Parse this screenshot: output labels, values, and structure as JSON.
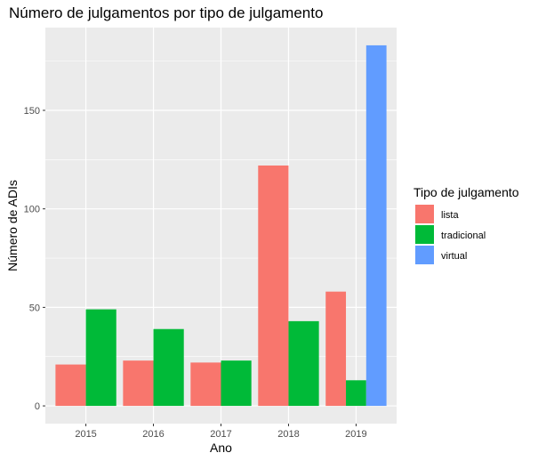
{
  "chart_data": {
    "type": "bar",
    "title": "Número de julgamentos por tipo de julgamento",
    "xlabel": "Ano",
    "ylabel": "Número de ADIs",
    "categories": [
      "2015",
      "2016",
      "2017",
      "2018",
      "2019"
    ],
    "series": [
      {
        "name": "lista",
        "color": "#F8766D",
        "values": [
          21,
          23,
          22,
          122,
          58
        ]
      },
      {
        "name": "tradicional",
        "color": "#00BA38",
        "values": [
          49,
          39,
          23,
          43,
          13
        ]
      },
      {
        "name": "virtual",
        "color": "#619CFF",
        "values": [
          null,
          null,
          null,
          null,
          183
        ]
      }
    ],
    "yticks": [
      0,
      50,
      100,
      150
    ],
    "ylim": [
      -9,
      192
    ],
    "grid": true,
    "legend": {
      "title": "Tipo de julgamento",
      "position": "right"
    },
    "colors": {
      "panel": "#EBEBEB",
      "gridline": "#FFFFFF",
      "axis_text": "#4D4D4D"
    }
  }
}
